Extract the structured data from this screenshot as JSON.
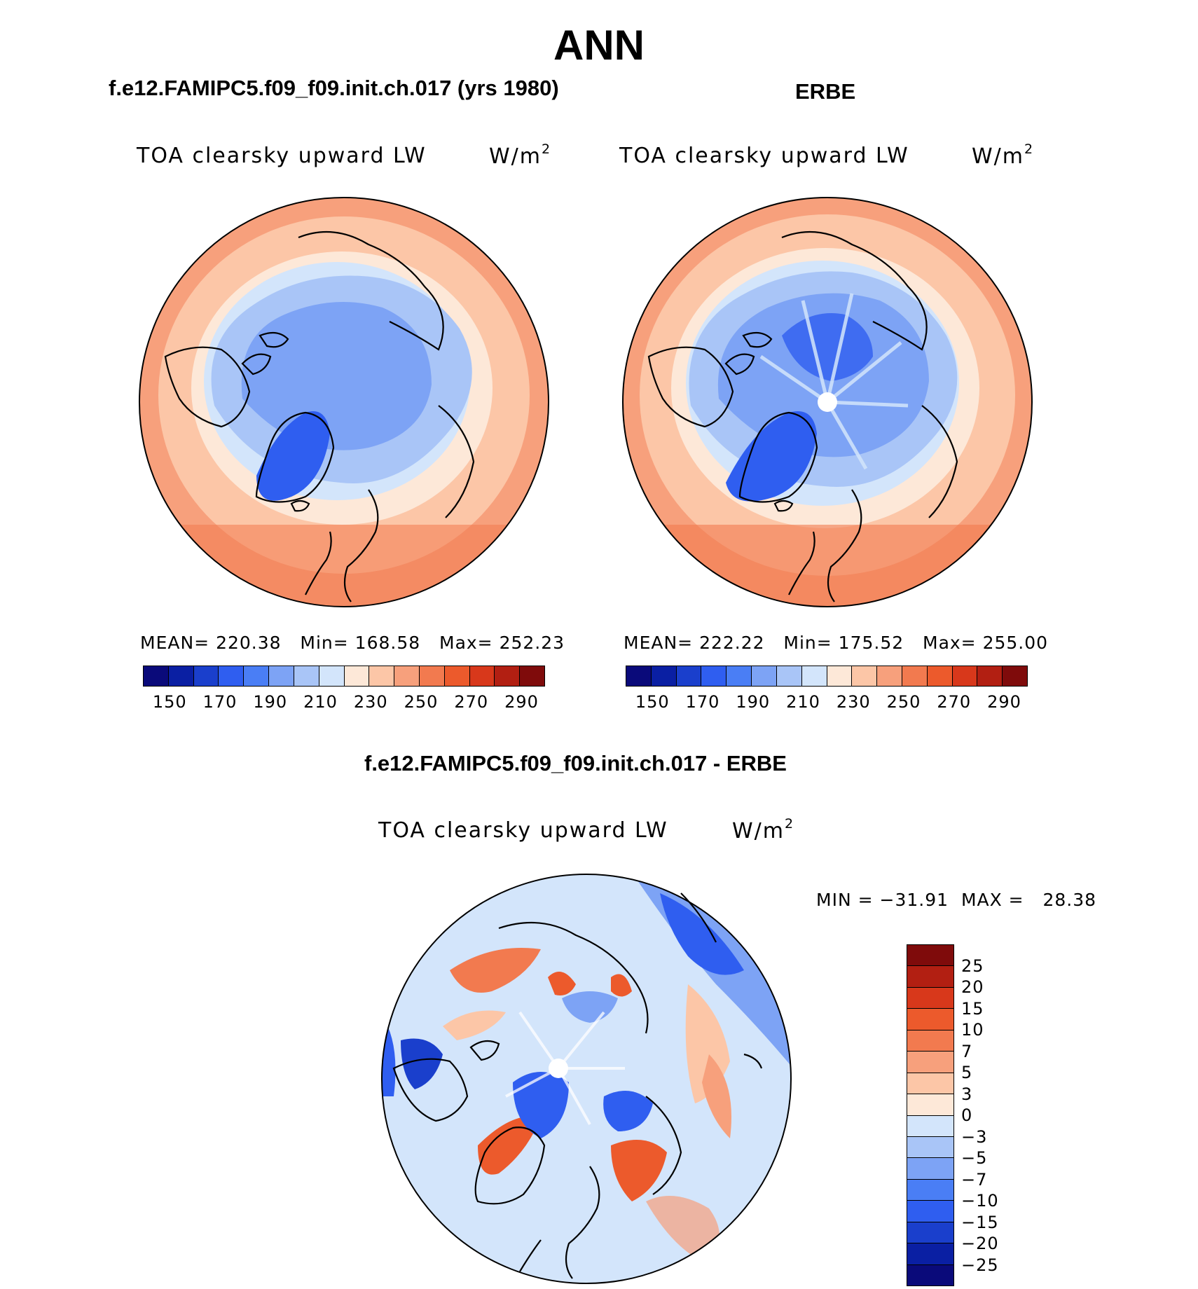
{
  "title": "ANN",
  "panels": {
    "model": {
      "header": "f.e12.FAMIPC5.f09_f09.init.ch.017 (yrs 1980)",
      "field": "TOA clearsky upward LW",
      "unit": "W/m",
      "unit_sup": "2",
      "stats": {
        "mean_label": "MEAN=",
        "mean": "220.38",
        "min_label": "Min=",
        "min": "168.58",
        "max_label": "Max=",
        "max": "252.23"
      }
    },
    "obs": {
      "header": "ERBE",
      "field": "TOA clearsky upward LW",
      "unit": "W/m",
      "unit_sup": "2",
      "stats": {
        "mean_label": "MEAN=",
        "mean": "222.22",
        "min_label": "Min=",
        "min": "175.52",
        "max_label": "Max=",
        "max": "255.00"
      }
    },
    "diff": {
      "header": "f.e12.FAMIPC5.f09_f09.init.ch.017 - ERBE",
      "field": "TOA clearsky upward LW",
      "unit": "W/m",
      "unit_sup": "2",
      "stats": {
        "min_label": "MIN =",
        "min": "−31.91",
        "max_label": "MAX =",
        "max": "28.38"
      }
    }
  },
  "colorbar_abs": {
    "colors": [
      "#0a0a7a",
      "#0a1fa3",
      "#1a3fcc",
      "#2f5ef0",
      "#4a7ef5",
      "#7da3f5",
      "#a9c5f7",
      "#d3e5fb",
      "#fde8d8",
      "#fcc6a7",
      "#f7a07c",
      "#f27a4f",
      "#ec5a2c",
      "#d8381b",
      "#b21f12",
      "#7f0b0b"
    ],
    "tick_labels": [
      "150",
      "170",
      "190",
      "210",
      "230",
      "250",
      "270",
      "290"
    ]
  },
  "colorbar_diff": {
    "colors": [
      "#7f0b0b",
      "#b21f12",
      "#d8381b",
      "#ec5a2c",
      "#f27a4f",
      "#f7a07c",
      "#fcc6a7",
      "#fde8d8",
      "#d3e5fb",
      "#a9c5f7",
      "#7da3f5",
      "#4a7ef5",
      "#2f5ef0",
      "#1a3fcc",
      "#0a1fa3",
      "#0a0a7a"
    ],
    "tick_labels": [
      "25",
      "20",
      "15",
      "10",
      "7",
      "5",
      "3",
      "0",
      "−3",
      "−5",
      "−7",
      "−10",
      "−15",
      "−20",
      "−25"
    ]
  },
  "map_palette": {
    "blue_deep": "#2f5ef0",
    "blue_mid": "#7da3f5",
    "blue_light": "#a9c5f7",
    "blue_pale": "#d3e5fb",
    "peach_pale": "#fde8d8",
    "peach": "#fcc6a7",
    "salmon": "#f7a07c",
    "orange": "#f27a4f",
    "orange_red": "#ec5a2c",
    "land_outline": "#000000",
    "pole_hole": "#ffffff"
  }
}
